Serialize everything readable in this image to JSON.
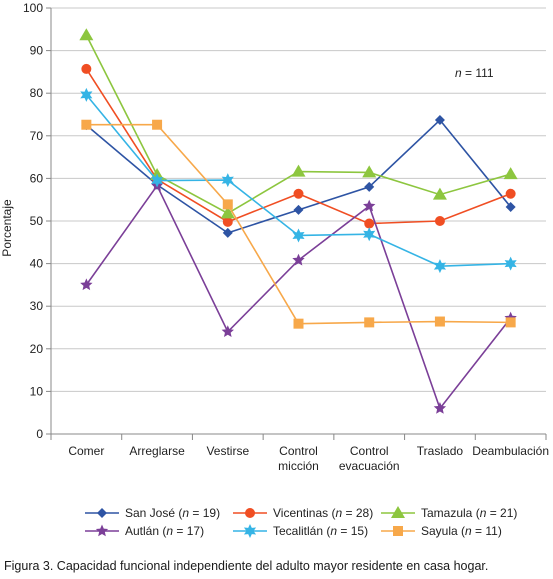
{
  "chart_data": {
    "type": "line",
    "categories": [
      [
        "Comer"
      ],
      [
        "Arreglarse"
      ],
      [
        "Vestirse"
      ],
      [
        "Control",
        "micción"
      ],
      [
        "Control",
        "evacuación"
      ],
      [
        "Traslado"
      ],
      [
        "Deambulación"
      ]
    ],
    "ylabel": "Porcentaje",
    "ylim": [
      0,
      100
    ],
    "yticks": [
      0,
      10,
      20,
      30,
      40,
      50,
      60,
      70,
      80,
      90,
      100
    ],
    "grid": true,
    "annotation": {
      "prefix": "n",
      "text": " = 111"
    },
    "legend_position": "bottom",
    "series": [
      {
        "name": "San José",
        "n": "19",
        "color": "#2e54a4",
        "marker": "diamond",
        "values": [
          72.5,
          58.5,
          47.2,
          52.6,
          58.0,
          73.7,
          53.3
        ]
      },
      {
        "name": "Vicentinas",
        "n": "28",
        "color": "#f04e23",
        "marker": "circle",
        "values": [
          85.7,
          59.8,
          49.8,
          56.4,
          49.4,
          50.0,
          56.4
        ]
      },
      {
        "name": "Tamazula",
        "n": "21",
        "color": "#8dc63f",
        "marker": "triangle",
        "values": [
          93.6,
          60.8,
          51.8,
          61.6,
          61.4,
          56.2,
          61.0
        ]
      },
      {
        "name": "Autlán",
        "n": "17",
        "color": "#7b3f98",
        "marker": "star",
        "values": [
          35.0,
          58.3,
          24.0,
          40.8,
          53.5,
          6.0,
          27.2
        ]
      },
      {
        "name": "Tecalitlán",
        "n": "15",
        "color": "#35b4e5",
        "marker": "star6",
        "values": [
          79.6,
          59.5,
          59.6,
          46.6,
          46.9,
          39.4,
          40.0
        ]
      },
      {
        "name": "Sayula",
        "n": "11",
        "color": "#f7a84a",
        "marker": "square",
        "values": [
          72.6,
          72.6,
          53.9,
          25.9,
          26.2,
          26.4,
          26.2
        ]
      }
    ]
  },
  "caption": "Figura 3. Capacidad funcional independiente del adulto mayor residente en casa hogar."
}
